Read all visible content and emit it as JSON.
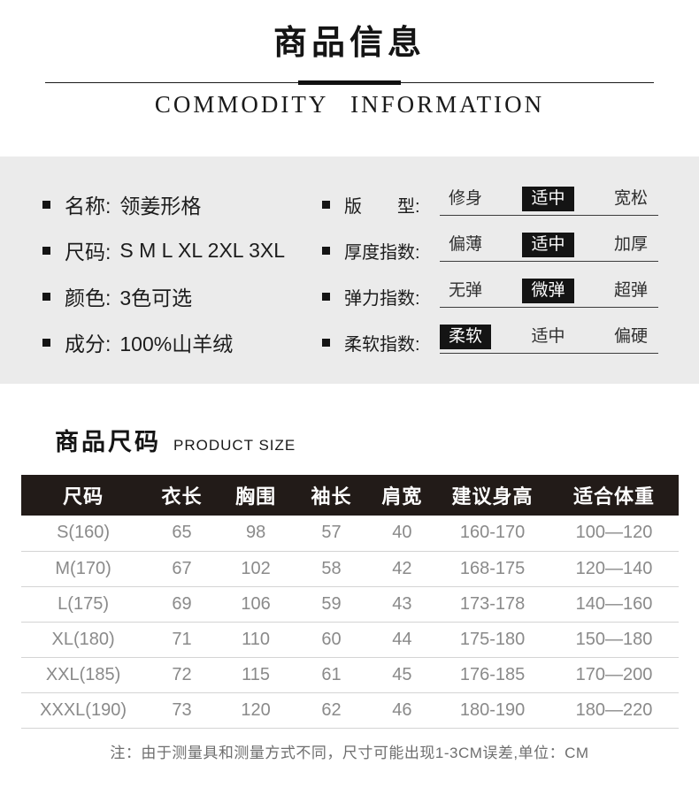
{
  "header": {
    "title_cn": "商品信息",
    "title_en": "COMMODITY  INFORMATION"
  },
  "attributes": {
    "left": [
      {
        "label": "名称:",
        "value": "领姜形格"
      },
      {
        "label": "尺码:",
        "value": "S M L XL 2XL 3XL"
      },
      {
        "label": "颜色:",
        "value": "3色可选"
      },
      {
        "label": "成分:",
        "value": "100%山羊绒"
      }
    ],
    "right": [
      {
        "label": "版　　型:",
        "options": [
          "修身",
          "适中",
          "宽松"
        ],
        "selected": 1
      },
      {
        "label": "厚度指数:",
        "options": [
          "偏薄",
          "适中",
          "加厚"
        ],
        "selected": 1
      },
      {
        "label": "弹力指数:",
        "options": [
          "无弹",
          "微弹",
          "超弹"
        ],
        "selected": 1
      },
      {
        "label": "柔软指数:",
        "options": [
          "柔软",
          "适中",
          "偏硬"
        ],
        "selected": 0
      }
    ]
  },
  "size_section": {
    "title_cn": "商品尺码",
    "title_en": "PRODUCT SIZE",
    "table": {
      "headers": [
        "尺码",
        "衣长",
        "胸围",
        "袖长",
        "肩宽",
        "建议身高",
        "适合体重"
      ],
      "rows": [
        [
          "S(160)",
          "65",
          "98",
          "57",
          "40",
          "160-170",
          "100—120"
        ],
        [
          "M(170)",
          "67",
          "102",
          "58",
          "42",
          "168-175",
          "120—140"
        ],
        [
          "L(175)",
          "69",
          "106",
          "59",
          "43",
          "173-178",
          "140—160"
        ],
        [
          "XL(180)",
          "71",
          "110",
          "60",
          "44",
          "175-180",
          "150—180"
        ],
        [
          "XXL(185)",
          "72",
          "115",
          "61",
          "45",
          "176-185",
          "170—200"
        ],
        [
          "XXXL(190)",
          "73",
          "120",
          "62",
          "46",
          "180-190",
          "180—220"
        ]
      ]
    },
    "note": "注：由于测量具和测量方式不同，尺寸可能出现1-3CM误差,单位：CM"
  },
  "colors": {
    "panel_bg": "#ebebeb",
    "table_header_bg": "#221b18",
    "selected_chip_bg": "#141414",
    "body_text": "#8a8a8a",
    "accent_black": "#141414"
  }
}
